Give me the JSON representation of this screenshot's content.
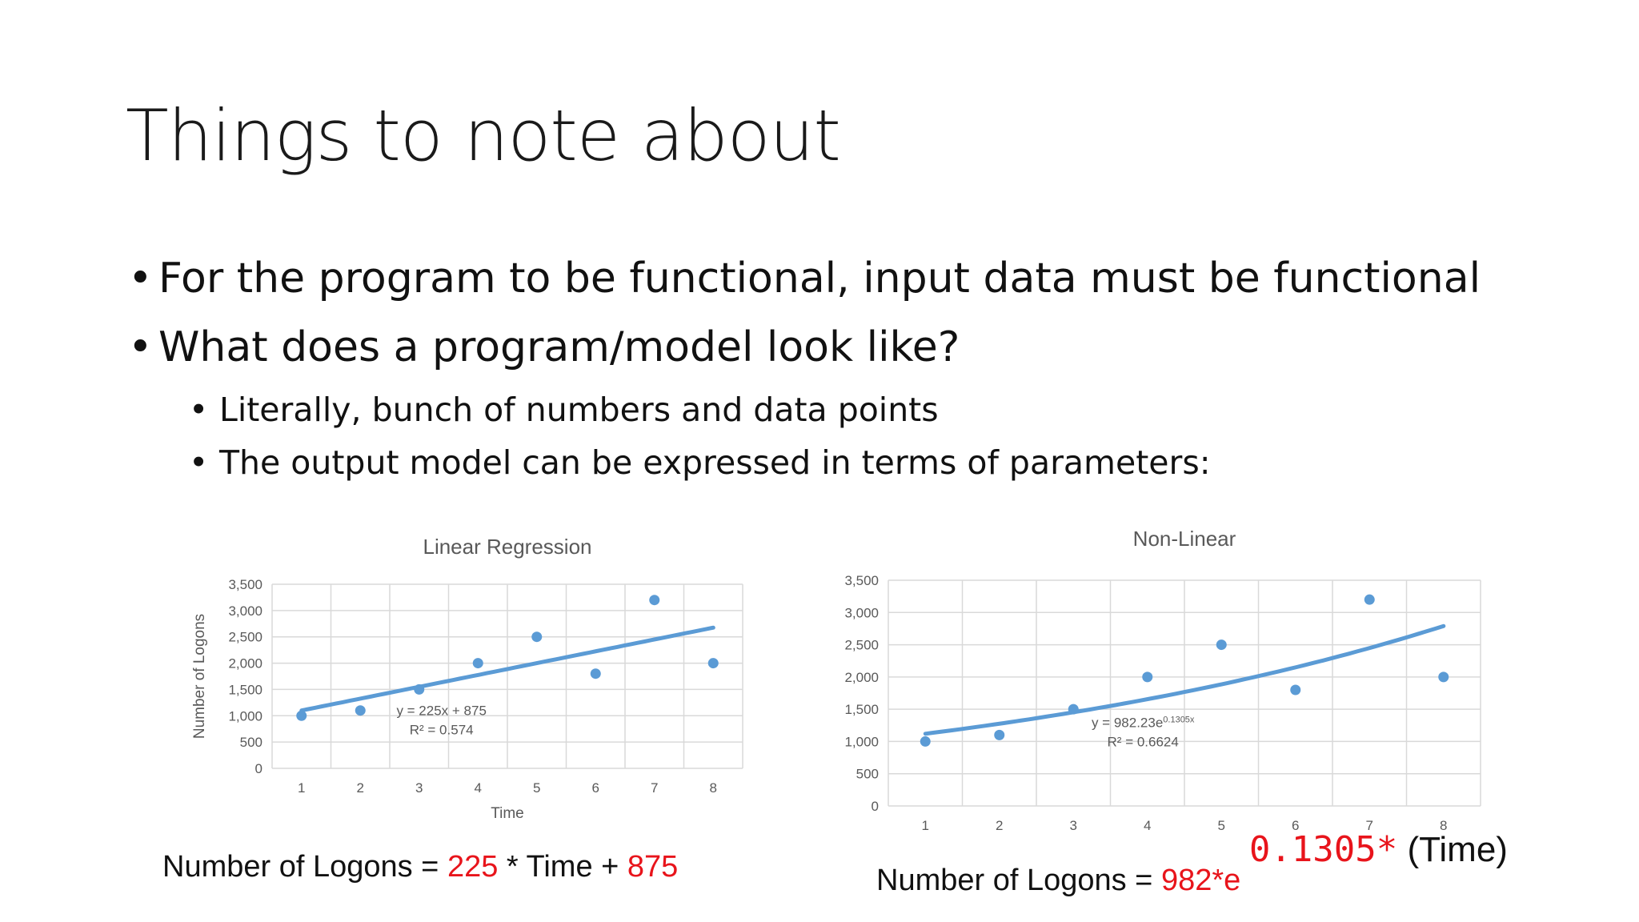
{
  "slide": {
    "title": "Things to note about",
    "bullets": [
      {
        "level": 1,
        "text": "For the program to be functional, input data must be functional"
      },
      {
        "level": 1,
        "text": "What does a program/model look like?"
      },
      {
        "level": 2,
        "text": "Literally, bunch of numbers and data points"
      },
      {
        "level": 2,
        "text": "The output model can be expressed in terms of parameters:"
      }
    ],
    "bullet_glyph": "•"
  },
  "chart_data": [
    {
      "type": "scatter",
      "title": "Linear Regression",
      "xlabel": "Time",
      "ylabel": "Number of Logons",
      "x": [
        1,
        2,
        3,
        4,
        5,
        6,
        7,
        8
      ],
      "y": [
        1000,
        1100,
        1500,
        2000,
        2500,
        1800,
        3200,
        2000
      ],
      "xlim": [
        0.5,
        8.5
      ],
      "ylim": [
        0,
        3500
      ],
      "x_ticks": [
        "1",
        "2",
        "3",
        "4",
        "5",
        "6",
        "7",
        "8"
      ],
      "y_ticks": [
        "0",
        "500",
        "1,000",
        "1,500",
        "2,000",
        "2,500",
        "3,000",
        "3,500"
      ],
      "trendline": {
        "kind": "linear",
        "slope": 225,
        "intercept": 875
      },
      "trend_equation": "y = 225x + 875",
      "trend_r2": "R² = 0.574",
      "grid": true,
      "point_color": "#5b9bd5",
      "line_color": "#5b9bd5"
    },
    {
      "type": "scatter",
      "title": "Non-Linear",
      "xlabel": "",
      "ylabel": "",
      "x": [
        1,
        2,
        3,
        4,
        5,
        6,
        7,
        8
      ],
      "y": [
        1000,
        1100,
        1500,
        2000,
        2500,
        1800,
        3200,
        2000
      ],
      "xlim": [
        0.5,
        8.5
      ],
      "ylim": [
        0,
        3500
      ],
      "x_ticks": [
        "1",
        "2",
        "3",
        "4",
        "5",
        "6",
        "7",
        "8"
      ],
      "y_ticks": [
        "0",
        "500",
        "1,000",
        "1,500",
        "2,000",
        "2,500",
        "3,000",
        "3,500"
      ],
      "trendline": {
        "kind": "exponential",
        "a": 982.23,
        "b": 0.1305
      },
      "trend_equation_base": "y = 982.23e",
      "trend_equation_exp": "0.1305x",
      "trend_r2": "R² = 0.6624",
      "grid": true,
      "point_color": "#5b9bd5",
      "line_color": "#5b9bd5"
    }
  ],
  "equations": {
    "linear": {
      "prefix": "Number of Logons = ",
      "slope": "225",
      "middle": " * Time + ",
      "intercept": "875"
    },
    "nonlinear": {
      "prefix": "Number of Logons = ",
      "coef": "982*e",
      "exponent": "0.1305*",
      "suffix": " (Time)"
    }
  },
  "colors": {
    "highlight": "#e8141b",
    "axis_text": "#595959",
    "grid": "#d9d9d9"
  }
}
